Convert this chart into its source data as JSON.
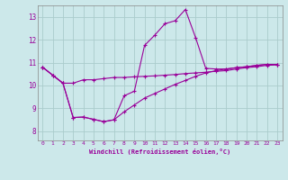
{
  "xlabel": "Windchill (Refroidissement éolien,°C)",
  "bg_color": "#cce8ea",
  "grid_color": "#aacccc",
  "line_color": "#990099",
  "xlim": [
    -0.5,
    23.5
  ],
  "ylim": [
    7.6,
    13.5
  ],
  "xticks": [
    0,
    1,
    2,
    3,
    4,
    5,
    6,
    7,
    8,
    9,
    10,
    11,
    12,
    13,
    14,
    15,
    16,
    17,
    18,
    19,
    20,
    21,
    22,
    23
  ],
  "yticks": [
    8,
    9,
    10,
    11,
    12,
    13
  ],
  "line1_y": [
    10.8,
    10.45,
    10.1,
    10.1,
    10.25,
    10.25,
    10.3,
    10.35,
    10.35,
    10.38,
    10.4,
    10.42,
    10.45,
    10.48,
    10.52,
    10.55,
    10.58,
    10.62,
    10.65,
    10.72,
    10.78,
    10.82,
    10.88,
    10.9
  ],
  "line2_y": [
    10.8,
    10.45,
    10.1,
    8.6,
    8.62,
    8.52,
    8.42,
    8.5,
    9.55,
    9.75,
    11.75,
    12.2,
    12.7,
    12.83,
    13.32,
    12.1,
    10.75,
    10.72,
    10.72,
    10.78,
    10.82,
    10.88,
    10.92,
    10.92
  ],
  "line3_y": [
    10.8,
    10.45,
    10.1,
    8.6,
    8.62,
    8.52,
    8.42,
    8.5,
    8.85,
    9.15,
    9.45,
    9.65,
    9.85,
    10.05,
    10.22,
    10.4,
    10.55,
    10.65,
    10.72,
    10.78,
    10.82,
    10.88,
    10.92,
    10.92
  ]
}
